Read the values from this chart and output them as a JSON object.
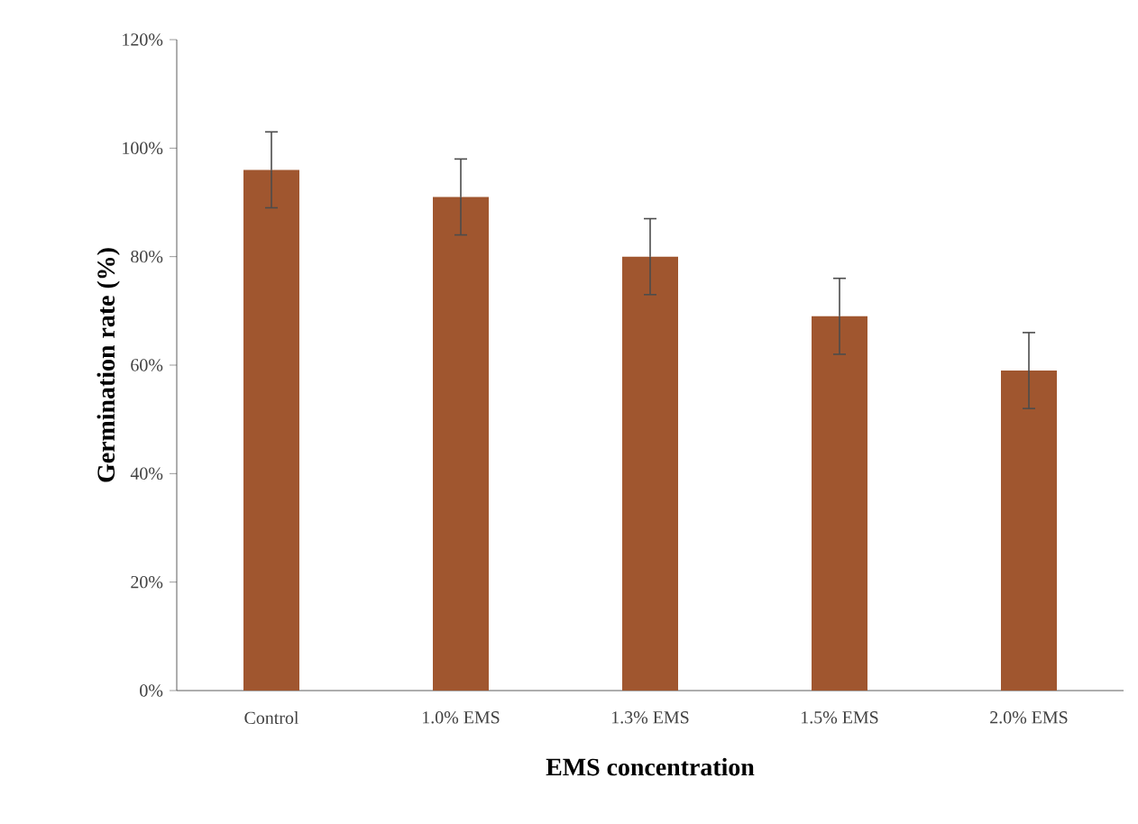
{
  "chart_data": {
    "type": "bar",
    "xlabel": "EMS concentration",
    "ylabel": "Germination rate (%)",
    "categories": [
      "Control",
      "1.0% EMS",
      "1.3% EMS",
      "1.5% EMS",
      "2.0% EMS"
    ],
    "values": [
      96,
      91,
      80,
      69,
      59
    ],
    "errors": [
      7,
      7,
      7,
      7,
      7
    ],
    "color": "#a0562f",
    "ylim": [
      0,
      120
    ],
    "yticks": [
      {
        "value": 0,
        "label": "0%"
      },
      {
        "value": 20,
        "label": "20%"
      },
      {
        "value": 40,
        "label": "40%"
      },
      {
        "value": 60,
        "label": "60%"
      },
      {
        "value": 80,
        "label": "80%"
      },
      {
        "value": 100,
        "label": "100%"
      },
      {
        "value": 120,
        "label": "120%"
      }
    ],
    "grid": false
  }
}
